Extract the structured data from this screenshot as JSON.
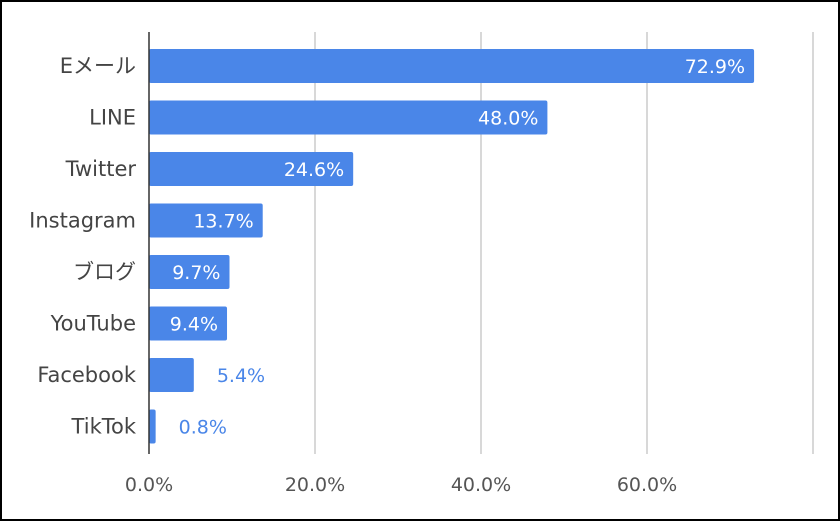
{
  "chart_data": {
    "type": "bar",
    "orientation": "horizontal",
    "categories": [
      "Eメール",
      "LINE",
      "Twitter",
      "Instagram",
      "ブログ",
      "YouTube",
      "Facebook",
      "TikTok"
    ],
    "values": [
      72.9,
      48.0,
      24.6,
      13.7,
      9.7,
      9.4,
      5.4,
      0.8
    ],
    "value_labels": [
      "72.9%",
      "48.0%",
      "24.6%",
      "13.7%",
      "9.7%",
      "9.4%",
      "5.4%",
      "0.8%"
    ],
    "x_ticks": [
      "0.0%",
      "20.0%",
      "40.0%",
      "60.0%"
    ],
    "xlim": [
      0,
      80
    ],
    "title": "",
    "xlabel": "",
    "ylabel": "",
    "grid": true,
    "legend": "none",
    "colors": {
      "bar": "#4a86e8",
      "grid": "#cccccc",
      "axis": "#333333"
    }
  }
}
